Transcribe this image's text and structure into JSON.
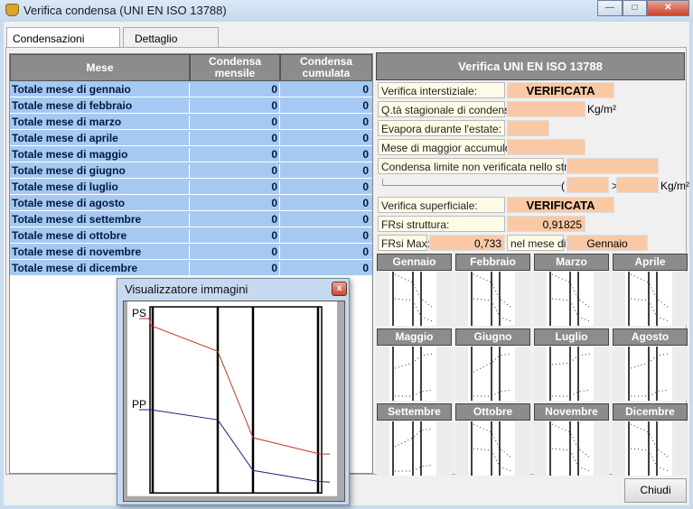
{
  "window": {
    "title": "Verifica condensa (UNI EN ISO 13788)",
    "controls": [
      "minimize",
      "maximize",
      "close"
    ]
  },
  "tabs": [
    {
      "label": "Condensazioni struttura",
      "active": true
    },
    {
      "label": "Dettaglio mensile",
      "active": false
    }
  ],
  "table": {
    "headers": [
      "Mese",
      "Condensa mensile",
      "Condensa cumulata"
    ],
    "rows": [
      [
        "Totale mese di gennaio",
        "0",
        "0"
      ],
      [
        "Totale mese di febbraio",
        "0",
        "0"
      ],
      [
        "Totale mese di marzo",
        "0",
        "0"
      ],
      [
        "Totale mese di aprile",
        "0",
        "0"
      ],
      [
        "Totale mese di maggio",
        "0",
        "0"
      ],
      [
        "Totale mese di giugno",
        "0",
        "0"
      ],
      [
        "Totale mese di luglio",
        "0",
        "0"
      ],
      [
        "Totale mese di agosto",
        "0",
        "0"
      ],
      [
        "Totale mese di settembre",
        "0",
        "0"
      ],
      [
        "Totale mese di ottobre",
        "0",
        "0"
      ],
      [
        "Totale mese di novembre",
        "0",
        "0"
      ],
      [
        "Totale mese di dicembre",
        "0",
        "0"
      ]
    ]
  },
  "verifica": {
    "title": "Verifica UNI EN ISO 13788",
    "interstiziale_label": "Verifica interstiziale:",
    "interstiziale_value": "VERIFICATA",
    "qta_label": "Q.tà stagionale di condensa:",
    "qta_value": "",
    "qta_unit": "Kg/m²",
    "evapora_label": "Evapora durante l'estate:",
    "evapora_value": "",
    "mese_label": "Mese di maggior accumulo:",
    "mese_value": "",
    "limite_label": "Condensa limite non verificata nello strato:",
    "limite_value": "",
    "paren": "(",
    "gt": ">",
    "limite_a": "",
    "limite_b": "",
    "limite_unit": "Kg/m²",
    "superficiale_label": "Verifica superficiale:",
    "superficiale_value": "VERIFICATA",
    "frsi_label": "FRsi struttura:",
    "frsi_value": "0,91825",
    "frsimax_label": "FRsi Max:",
    "frsimax_value": "0,733",
    "nelmese_label": "nel mese di:",
    "nelmese_value": "Gennaio"
  },
  "months": [
    "Gennaio",
    "Febbraio",
    "Marzo",
    "Aprile",
    "Maggio",
    "Giugno",
    "Luglio",
    "Agosto",
    "Settembre",
    "Ottobre",
    "Novembre",
    "Dicembre"
  ],
  "close_button": "Chiudi",
  "popup": {
    "title": "Visualizzatore immagini",
    "ps_label": "PS",
    "pp_label": "PP",
    "ps_color": "#c0392b",
    "pp_color": "#1a237e"
  },
  "colors": {
    "row_bg": "#a6c9f2",
    "header_bg": "#8c8c8c",
    "value_bg": "#f9c9a5",
    "label_bg": "#fffbe6"
  }
}
